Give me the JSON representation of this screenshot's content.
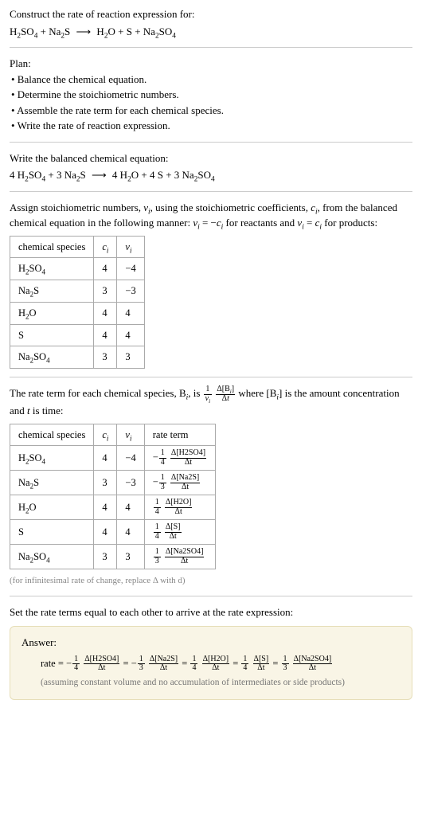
{
  "intro": {
    "title": "Construct the rate of reaction expression for:",
    "equation_parts": {
      "H2SO4": "H",
      "H2SO4_2": "2",
      "H2SO4_SO": "SO",
      "H2SO4_4": "4",
      "Na2S": "Na",
      "Na2S_2": "2",
      "Na2S_S": "S",
      "arrow": "⟶",
      "H2O": "H",
      "H2O_2": "2",
      "H2O_O": "O",
      "S": "S",
      "Na2SO4": "Na",
      "Na2SO4_2": "2",
      "Na2SO4_SO": "SO",
      "Na2SO4_4": "4"
    }
  },
  "plan": {
    "title": "Plan:",
    "b1": "• Balance the chemical equation.",
    "b2": "• Determine the stoichiometric numbers.",
    "b3": "• Assemble the rate term for each chemical species.",
    "b4": "• Write the rate of reaction expression."
  },
  "balanced": {
    "title": "Write the balanced chemical equation:",
    "c1": "4",
    "c2": "3",
    "c3": "4",
    "c4": "4",
    "c5": "3"
  },
  "assign": {
    "text_a": "Assign stoichiometric numbers, ",
    "nu_i": "ν",
    "i": "i",
    "text_b": ", using the stoichiometric coefficients, ",
    "c_i": "c",
    "text_c": ", from the balanced chemical equation in the following manner: ",
    "eq1a": " = −",
    "eq1b": " for reactants and ",
    "eq2a": " = ",
    "eq2b": " for products:"
  },
  "table1": {
    "h1": "chemical species",
    "h2": "c",
    "h2i": "i",
    "h3": "ν",
    "h3i": "i",
    "rows": [
      {
        "sp_a": "H",
        "sp_b": "2",
        "sp_c": "SO",
        "sp_d": "4",
        "c": "4",
        "v": "−4"
      },
      {
        "sp_a": "Na",
        "sp_b": "2",
        "sp_c": "S",
        "sp_d": "",
        "c": "3",
        "v": "−3"
      },
      {
        "sp_a": "H",
        "sp_b": "2",
        "sp_c": "O",
        "sp_d": "",
        "c": "4",
        "v": "4"
      },
      {
        "sp_a": "S",
        "sp_b": "",
        "sp_c": "",
        "sp_d": "",
        "c": "4",
        "v": "4"
      },
      {
        "sp_a": "Na",
        "sp_b": "2",
        "sp_c": "SO",
        "sp_d": "4",
        "c": "3",
        "v": "3"
      }
    ]
  },
  "rateterm": {
    "text_a": "The rate term for each chemical species, B",
    "text_b": ", is ",
    "text_c": " where [B",
    "text_d": "] is the amount concentration and ",
    "t": "t",
    "text_e": " is time:",
    "frac1_num": "1",
    "frac1_den_a": "ν",
    "frac1_den_b": "i",
    "frac2_num_a": "Δ[B",
    "frac2_num_b": "i",
    "frac2_num_c": "]",
    "frac2_den_a": "Δ",
    "frac2_den_b": "t"
  },
  "table2": {
    "h1": "chemical species",
    "h2": "c",
    "h2i": "i",
    "h3": "ν",
    "h3i": "i",
    "h4": "rate term",
    "rows": [
      {
        "sp_a": "H",
        "sp_b": "2",
        "sp_c": "SO",
        "sp_d": "4",
        "c": "4",
        "v": "−4",
        "sign": "−",
        "n": "1",
        "d": "4",
        "dn": "Δ[H2SO4]",
        "dd": "Δt"
      },
      {
        "sp_a": "Na",
        "sp_b": "2",
        "sp_c": "S",
        "sp_d": "",
        "c": "3",
        "v": "−3",
        "sign": "−",
        "n": "1",
        "d": "3",
        "dn": "Δ[Na2S]",
        "dd": "Δt"
      },
      {
        "sp_a": "H",
        "sp_b": "2",
        "sp_c": "O",
        "sp_d": "",
        "c": "4",
        "v": "4",
        "sign": "",
        "n": "1",
        "d": "4",
        "dn": "Δ[H2O]",
        "dd": "Δt"
      },
      {
        "sp_a": "S",
        "sp_b": "",
        "sp_c": "",
        "sp_d": "",
        "c": "4",
        "v": "4",
        "sign": "",
        "n": "1",
        "d": "4",
        "dn": "Δ[S]",
        "dd": "Δt"
      },
      {
        "sp_a": "Na",
        "sp_b": "2",
        "sp_c": "SO",
        "sp_d": "4",
        "c": "3",
        "v": "3",
        "sign": "",
        "n": "1",
        "d": "3",
        "dn": "Δ[Na2SO4]",
        "dd": "Δt"
      }
    ]
  },
  "infnote": "(for infinitesimal rate of change, replace Δ with d)",
  "setequal": "Set the rate terms equal to each other to arrive at the rate expression:",
  "answer": {
    "title": "Answer:",
    "lead": "rate = ",
    "terms": [
      {
        "sign": "−",
        "n": "1",
        "d": "4",
        "dn": "Δ[H2SO4]",
        "dd": "Δt",
        "sep": " = "
      },
      {
        "sign": "−",
        "n": "1",
        "d": "3",
        "dn": "Δ[Na2S]",
        "dd": "Δt",
        "sep": " = "
      },
      {
        "sign": "",
        "n": "1",
        "d": "4",
        "dn": "Δ[H2O]",
        "dd": "Δt",
        "sep": " = "
      },
      {
        "sign": "",
        "n": "1",
        "d": "4",
        "dn": "Δ[S]",
        "dd": "Δt",
        "sep": " = "
      },
      {
        "sign": "",
        "n": "1",
        "d": "3",
        "dn": "Δ[Na2SO4]",
        "dd": "Δt",
        "sep": ""
      }
    ],
    "note": "(assuming constant volume and no accumulation of intermediates or side products)"
  }
}
